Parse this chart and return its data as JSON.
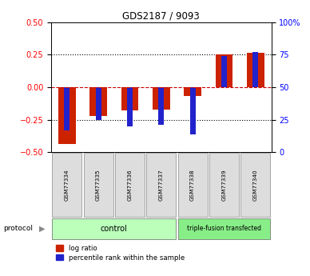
{
  "title": "GDS2187 / 9093",
  "samples": [
    "GSM77334",
    "GSM77335",
    "GSM77336",
    "GSM77337",
    "GSM77338",
    "GSM77339",
    "GSM77340"
  ],
  "log_ratio": [
    -0.435,
    -0.22,
    -0.18,
    -0.17,
    -0.07,
    0.25,
    0.265
  ],
  "percentile_rank": [
    17,
    25,
    20,
    21,
    14,
    74,
    77
  ],
  "groups": [
    {
      "label": "control",
      "start": 0,
      "end": 3,
      "color": "#bbffbb"
    },
    {
      "label": "triple-fusion transfected",
      "start": 4,
      "end": 6,
      "color": "#88ee88"
    }
  ],
  "ylim_left": [
    -0.5,
    0.5
  ],
  "ylim_right": [
    0,
    100
  ],
  "yticks_left": [
    -0.5,
    -0.25,
    0,
    0.25,
    0.5
  ],
  "yticks_right": [
    0,
    25,
    50,
    75,
    100
  ],
  "bar_color_red": "#cc2200",
  "bar_color_blue": "#2222cc",
  "hline_color_red": "#cc0000",
  "bg_color": "#ffffff",
  "sample_box_color": "#dddddd",
  "bar_width": 0.55,
  "blue_bar_width": 0.18
}
